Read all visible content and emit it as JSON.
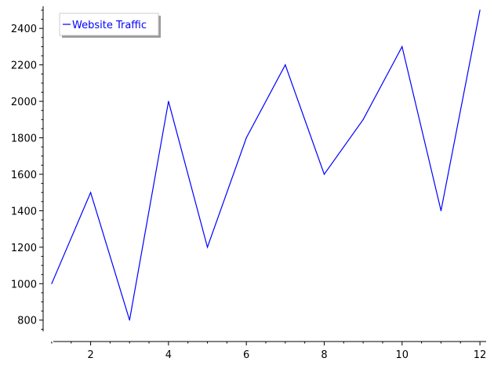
{
  "chart_data": {
    "type": "line",
    "title": "",
    "xlabel": "",
    "ylabel": "",
    "grid": false,
    "legend_position": "top-left",
    "xlim": [
      0.8,
      12.2
    ],
    "ylim": [
      730,
      2530
    ],
    "x_ticks": [
      2,
      4,
      6,
      8,
      10,
      12
    ],
    "y_ticks": [
      800,
      1000,
      1200,
      1400,
      1600,
      1800,
      2000,
      2200,
      2400
    ],
    "series": [
      {
        "name": "Website Traffic",
        "color": "#0000ff",
        "x": [
          1,
          2,
          3,
          4,
          5,
          6,
          7,
          8,
          9,
          10,
          11,
          12
        ],
        "y": [
          1000,
          1500,
          800,
          2000,
          1200,
          1800,
          2200,
          1600,
          1900,
          2300,
          1400,
          2500
        ]
      }
    ]
  }
}
